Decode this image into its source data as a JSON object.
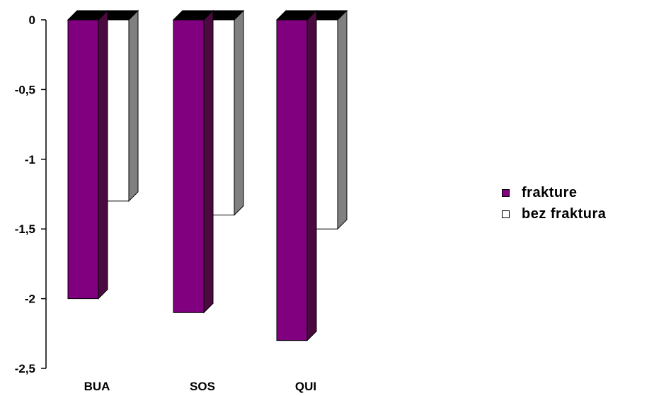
{
  "chart_data": {
    "type": "bar",
    "categories": [
      "BUA",
      "SOS",
      "QUI"
    ],
    "series": [
      {
        "name": "frakture",
        "values": [
          -2.0,
          -2.1,
          -2.3
        ],
        "color": "#800080",
        "side_color": "#4a0a40"
      },
      {
        "name": "bez fraktura",
        "values": [
          -1.3,
          -1.4,
          -1.5
        ],
        "color": "#ffffff",
        "side_color": "#808080"
      }
    ],
    "y_ticks": [
      0,
      -0.5,
      -1,
      -1.5,
      -2,
      -2.5
    ],
    "y_tick_labels": [
      "0",
      "-0,5",
      "-1",
      "-1,5",
      "-2",
      "-2,5"
    ],
    "ylim": [
      -2.5,
      0
    ],
    "title": "",
    "xlabel": "",
    "ylabel": "",
    "grid": false,
    "legend_position": "right",
    "style": "3d-column"
  }
}
